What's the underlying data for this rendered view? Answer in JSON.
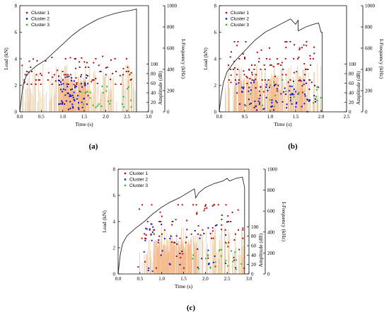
{
  "figure": {
    "captions": [
      "(a)",
      "(b)",
      "(c)"
    ]
  },
  "colors": {
    "cluster1": "#b01010",
    "cluster2": "#1414c8",
    "cluster3": "#33b833",
    "load": "#2a2a2a",
    "amplitude_line": "#e8c7a0",
    "amplitude_fill": "#f7b98a"
  },
  "chart_data": [
    {
      "type": "scatter",
      "panel": "(a)",
      "xlabel": "Time (s)",
      "ylabel_left": "Load (kN)",
      "ylabel_amp": "Amplitude (dB)",
      "ylabel_right": "I-Frequency (kHz)",
      "xlim": [
        0,
        3.0
      ],
      "x_ticks": [
        "0.0",
        "0.5",
        "1.0",
        "1.5",
        "2.0",
        "2.5",
        "3.0"
      ],
      "load_ylim": [
        0,
        8
      ],
      "load_ticks": [
        "0",
        "2",
        "4",
        "6",
        "8"
      ],
      "amp_ylim": [
        0,
        100
      ],
      "amp_ticks": [
        "0",
        "20",
        "40",
        "60",
        "80",
        "100"
      ],
      "freq_ylim": [
        0,
        1000
      ],
      "freq_ticks": [
        "0",
        "200",
        "400",
        "600",
        "800",
        "1000"
      ],
      "legend": [
        "Cluster 1",
        "Cluster 2",
        "Cluster 3"
      ],
      "load_curve": [
        [
          0.0,
          0.0
        ],
        [
          0.03,
          0.8
        ],
        [
          0.06,
          1.6
        ],
        [
          0.1,
          2.3
        ],
        [
          0.15,
          2.7
        ],
        [
          0.25,
          3.1
        ],
        [
          0.4,
          3.5
        ],
        [
          0.6,
          3.9
        ],
        [
          0.8,
          4.5
        ],
        [
          1.0,
          5.1
        ],
        [
          1.2,
          5.7
        ],
        [
          1.4,
          6.2
        ],
        [
          1.6,
          6.6
        ],
        [
          1.8,
          6.95
        ],
        [
          2.0,
          7.2
        ],
        [
          2.2,
          7.4
        ],
        [
          2.4,
          7.55
        ],
        [
          2.6,
          7.65
        ],
        [
          2.72,
          7.75
        ],
        [
          2.72,
          0.0
        ]
      ],
      "amplitude_bursts": {
        "t_start": 0.05,
        "t_end": 2.7,
        "dense_start": 0.9,
        "dense_end": 1.6,
        "max_db": 100
      },
      "clusters": {
        "cluster1": {
          "count": 90,
          "t_range": [
            0.05,
            2.6
          ],
          "freq_levels_khz": [
            500,
            420,
            380,
            350,
            300,
            260
          ],
          "freq_spread_khz": [
            240,
            540
          ]
        },
        "cluster2": {
          "count": 70,
          "t_range": [
            0.9,
            1.6
          ],
          "freq_spread_khz": [
            20,
            340
          ]
        },
        "cluster3": {
          "count": 26,
          "t_range": [
            1.4,
            2.6
          ],
          "freq_spread_khz": [
            20,
            240
          ]
        }
      }
    },
    {
      "type": "scatter",
      "panel": "(b)",
      "xlabel": "Time (s)",
      "ylabel_left": "Load (kN)",
      "ylabel_amp": "Amplitude (dB)",
      "ylabel_right": "I-Frequency (kHz)",
      "xlim": [
        0,
        2.5
      ],
      "x_ticks": [
        "0.0",
        "0.5",
        "1.0",
        "1.5",
        "2.0",
        "2.5"
      ],
      "load_ylim": [
        0,
        8
      ],
      "load_ticks": [
        "0",
        "2",
        "4",
        "6",
        "8"
      ],
      "amp_ylim": [
        0,
        100
      ],
      "amp_ticks": [
        "0",
        "20",
        "40",
        "60",
        "80",
        "100"
      ],
      "freq_ylim": [
        0,
        1000
      ],
      "freq_ticks": [
        "0",
        "200",
        "400",
        "600",
        "800",
        "1000"
      ],
      "legend": [
        "Cluster 1",
        "Cluster 2",
        "Cluster 3"
      ],
      "load_curve": [
        [
          0.0,
          0.0
        ],
        [
          0.03,
          1.0
        ],
        [
          0.08,
          2.2
        ],
        [
          0.15,
          3.0
        ],
        [
          0.3,
          3.8
        ],
        [
          0.5,
          4.6
        ],
        [
          0.7,
          5.4
        ],
        [
          0.9,
          6.0
        ],
        [
          1.1,
          6.4
        ],
        [
          1.3,
          6.8
        ],
        [
          1.4,
          7.0
        ],
        [
          1.5,
          6.6
        ],
        [
          1.55,
          6.9
        ],
        [
          1.55,
          6.1
        ],
        [
          1.7,
          6.4
        ],
        [
          1.85,
          6.6
        ],
        [
          1.95,
          6.7
        ],
        [
          2.0,
          6.0
        ],
        [
          2.02,
          6.0
        ],
        [
          2.02,
          0.0
        ]
      ],
      "amplitude_bursts": {
        "t_start": 0.1,
        "t_end": 2.0,
        "dense_start": 0.3,
        "dense_end": 1.7,
        "max_db": 100
      },
      "clusters": {
        "cluster1": {
          "count": 110,
          "t_range": [
            0.15,
            1.95
          ],
          "freq_levels_khz": [
            660,
            500,
            440,
            400,
            350,
            300
          ],
          "freq_spread_khz": [
            160,
            660
          ]
        },
        "cluster2": {
          "count": 90,
          "t_range": [
            0.3,
            1.95
          ],
          "freq_spread_khz": [
            0,
            300
          ]
        },
        "cluster3": {
          "count": 20,
          "t_range": [
            0.5,
            2.0
          ],
          "freq_spread_khz": [
            40,
            320
          ]
        }
      }
    },
    {
      "type": "scatter",
      "panel": "(c)",
      "xlabel": "Time (s)",
      "ylabel_left": "Load (kN)",
      "ylabel_amp": "Amplitude (dB)",
      "ylabel_right": "I-Frequency (kHz)",
      "xlim": [
        0,
        3.0
      ],
      "x_ticks": [
        "0.0",
        "0.5",
        "1.0",
        "1.5",
        "2.0",
        "2.5",
        "3.0"
      ],
      "load_ylim": [
        0,
        8
      ],
      "load_ticks": [
        "0",
        "2",
        "4",
        "6",
        "8"
      ],
      "amp_ylim": [
        0,
        100
      ],
      "amp_ticks": [
        "0",
        "20",
        "40",
        "60",
        "80",
        "100"
      ],
      "freq_ylim": [
        0,
        1000
      ],
      "freq_ticks": [
        "0",
        "200",
        "400",
        "600",
        "800",
        "1000"
      ],
      "legend": [
        "Cluster 1",
        "Cluster 2",
        "Cluster 3"
      ],
      "load_curve": [
        [
          0.0,
          0.0
        ],
        [
          0.05,
          1.5
        ],
        [
          0.1,
          2.3
        ],
        [
          0.2,
          2.9
        ],
        [
          0.4,
          3.5
        ],
        [
          0.6,
          4.0
        ],
        [
          0.8,
          4.6
        ],
        [
          1.0,
          5.1
        ],
        [
          1.2,
          5.5
        ],
        [
          1.4,
          5.8
        ],
        [
          1.6,
          6.2
        ],
        [
          1.75,
          6.5
        ],
        [
          1.78,
          5.8
        ],
        [
          1.85,
          6.2
        ],
        [
          2.0,
          6.6
        ],
        [
          2.2,
          6.9
        ],
        [
          2.4,
          7.1
        ],
        [
          2.5,
          7.3
        ],
        [
          2.55,
          7.1
        ],
        [
          2.7,
          7.3
        ],
        [
          2.85,
          7.4
        ],
        [
          2.9,
          6.6
        ],
        [
          2.9,
          0.0
        ]
      ],
      "amplitude_bursts": {
        "t_start": 0.45,
        "t_end": 2.9,
        "dense_start": 0.8,
        "dense_end": 1.8,
        "max_db": 100
      },
      "clusters": {
        "cluster1": {
          "count": 95,
          "t_range": [
            0.45,
            2.9
          ],
          "freq_levels_khz": [
            660,
            500,
            420,
            380,
            340,
            300
          ],
          "freq_spread_khz": [
            20,
            660
          ]
        },
        "cluster2": {
          "count": 45,
          "t_range": [
            0.55,
            2.5
          ],
          "freq_spread_khz": [
            0,
            500
          ]
        },
        "cluster3": {
          "count": 22,
          "t_range": [
            1.7,
            2.9
          ],
          "freq_spread_khz": [
            40,
            300
          ]
        }
      }
    }
  ]
}
